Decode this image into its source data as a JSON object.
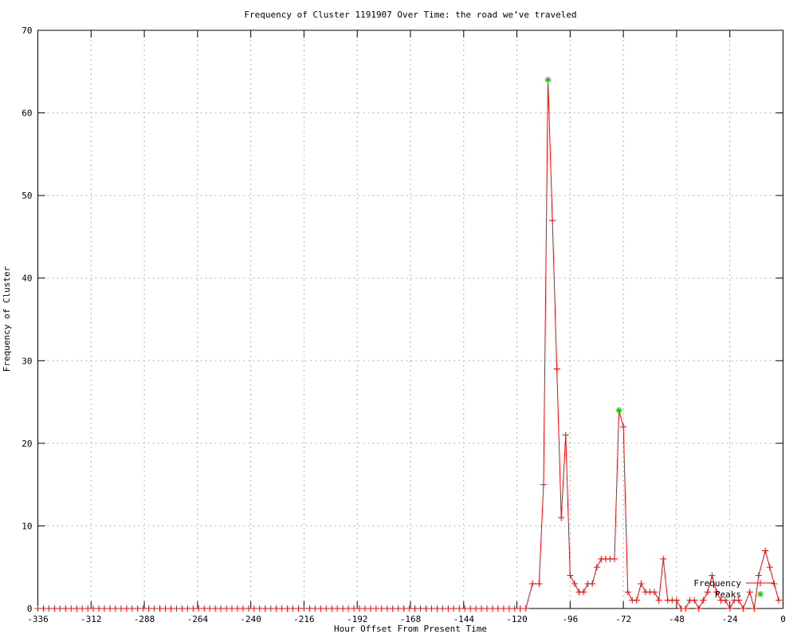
{
  "colors": {
    "background": "#ffffff",
    "axis": "#000000",
    "grid": "#b0b0b0",
    "frequency_line": "#ff0000",
    "peaks_marker": "#00c000",
    "text": "#000000"
  },
  "chart_data": {
    "type": "line",
    "title": "Frequency of Cluster 1191907 Over Time: the road we’ve traveled",
    "xlabel": "Hour Offset From Present Time",
    "ylabel": "Frequency of Cluster",
    "xlim": [
      -336,
      0
    ],
    "ylim": [
      0,
      70
    ],
    "x_ticks": [
      -336,
      -312,
      -288,
      -264,
      -240,
      -216,
      -192,
      -168,
      -144,
      -120,
      -96,
      -72,
      -48,
      -24,
      0
    ],
    "y_ticks": [
      0,
      10,
      20,
      30,
      40,
      50,
      60,
      70
    ],
    "grid": true,
    "legend_position": "bottom-right-inside",
    "series": [
      {
        "name": "Frequency",
        "style": "line+points",
        "marker": "plus",
        "color": "#ff0000",
        "points": [
          [
            -336,
            0
          ],
          [
            -333.5,
            0
          ],
          [
            -331,
            0
          ],
          [
            -328.5,
            0
          ],
          [
            -326,
            0
          ],
          [
            -323.5,
            0
          ],
          [
            -321,
            0
          ],
          [
            -318.5,
            0
          ],
          [
            -316,
            0
          ],
          [
            -313.5,
            0
          ],
          [
            -311,
            0
          ],
          [
            -308.5,
            0
          ],
          [
            -306,
            0
          ],
          [
            -303.5,
            0
          ],
          [
            -301,
            0
          ],
          [
            -298.5,
            0
          ],
          [
            -296,
            0
          ],
          [
            -293.5,
            0
          ],
          [
            -291,
            0
          ],
          [
            -288.5,
            0
          ],
          [
            -286,
            0
          ],
          [
            -283.5,
            0
          ],
          [
            -281,
            0
          ],
          [
            -278.5,
            0
          ],
          [
            -276,
            0
          ],
          [
            -273.5,
            0
          ],
          [
            -271,
            0
          ],
          [
            -268.5,
            0
          ],
          [
            -266,
            0
          ],
          [
            -263.5,
            0
          ],
          [
            -261,
            0
          ],
          [
            -258.5,
            0
          ],
          [
            -256,
            0
          ],
          [
            -253.5,
            0
          ],
          [
            -251,
            0
          ],
          [
            -248.5,
            0
          ],
          [
            -246,
            0
          ],
          [
            -243.5,
            0
          ],
          [
            -241,
            0
          ],
          [
            -238.5,
            0
          ],
          [
            -236,
            0
          ],
          [
            -233.5,
            0
          ],
          [
            -231,
            0
          ],
          [
            -228.5,
            0
          ],
          [
            -226,
            0
          ],
          [
            -223.5,
            0
          ],
          [
            -221,
            0
          ],
          [
            -218.5,
            0
          ],
          [
            -216,
            0
          ],
          [
            -213.5,
            0
          ],
          [
            -211,
            0
          ],
          [
            -208.5,
            0
          ],
          [
            -206,
            0
          ],
          [
            -203.5,
            0
          ],
          [
            -201,
            0
          ],
          [
            -198.5,
            0
          ],
          [
            -196,
            0
          ],
          [
            -193.5,
            0
          ],
          [
            -191,
            0
          ],
          [
            -188.5,
            0
          ],
          [
            -186,
            0
          ],
          [
            -183.5,
            0
          ],
          [
            -181,
            0
          ],
          [
            -178.5,
            0
          ],
          [
            -176,
            0
          ],
          [
            -173.5,
            0
          ],
          [
            -171,
            0
          ],
          [
            -168.5,
            0
          ],
          [
            -166,
            0
          ],
          [
            -163.5,
            0
          ],
          [
            -161,
            0
          ],
          [
            -158.5,
            0
          ],
          [
            -156,
            0
          ],
          [
            -153.5,
            0
          ],
          [
            -151,
            0
          ],
          [
            -148.5,
            0
          ],
          [
            -146,
            0
          ],
          [
            -143.5,
            0
          ],
          [
            -141,
            0
          ],
          [
            -138.5,
            0
          ],
          [
            -136,
            0
          ],
          [
            -133.5,
            0
          ],
          [
            -131,
            0
          ],
          [
            -128.5,
            0
          ],
          [
            -126,
            0
          ],
          [
            -123.5,
            0
          ],
          [
            -121,
            0
          ],
          [
            -118.5,
            0
          ],
          [
            -116,
            0
          ],
          [
            -113,
            3
          ],
          [
            -110,
            3
          ],
          [
            -108,
            15
          ],
          [
            -106,
            64
          ],
          [
            -104,
            47
          ],
          [
            -102,
            29
          ],
          [
            -100,
            11
          ],
          [
            -98,
            21
          ],
          [
            -96,
            4
          ],
          [
            -94,
            3
          ],
          [
            -92,
            2
          ],
          [
            -90,
            2
          ],
          [
            -88,
            3
          ],
          [
            -86,
            3
          ],
          [
            -84,
            5
          ],
          [
            -82,
            6
          ],
          [
            -80,
            6
          ],
          [
            -78,
            6
          ],
          [
            -76,
            6
          ],
          [
            -74,
            24
          ],
          [
            -72,
            22
          ],
          [
            -70,
            2
          ],
          [
            -68,
            1
          ],
          [
            -66,
            1
          ],
          [
            -64,
            3
          ],
          [
            -62,
            2
          ],
          [
            -60,
            2
          ],
          [
            -58,
            2
          ],
          [
            -56,
            1
          ],
          [
            -54,
            6
          ],
          [
            -52,
            1
          ],
          [
            -50,
            1
          ],
          [
            -48,
            1
          ],
          [
            -46,
            0
          ],
          [
            -44,
            0
          ],
          [
            -42,
            1
          ],
          [
            -40,
            1
          ],
          [
            -38,
            0
          ],
          [
            -36,
            1
          ],
          [
            -34,
            2
          ],
          [
            -32,
            4
          ],
          [
            -30,
            2
          ],
          [
            -28,
            1
          ],
          [
            -26,
            1
          ],
          [
            -24,
            0
          ],
          [
            -22,
            1
          ],
          [
            -20,
            1
          ],
          [
            -18,
            0
          ],
          [
            -15,
            2
          ],
          [
            -13,
            0
          ],
          [
            -11,
            4
          ],
          [
            -8,
            7
          ],
          [
            -6,
            5
          ],
          [
            -4,
            3
          ],
          [
            -2,
            1
          ]
        ]
      },
      {
        "name": "Peaks",
        "style": "points",
        "marker": "star",
        "color": "#00c000",
        "points": [
          [
            -106,
            64
          ],
          [
            -74,
            24
          ]
        ]
      }
    ]
  }
}
